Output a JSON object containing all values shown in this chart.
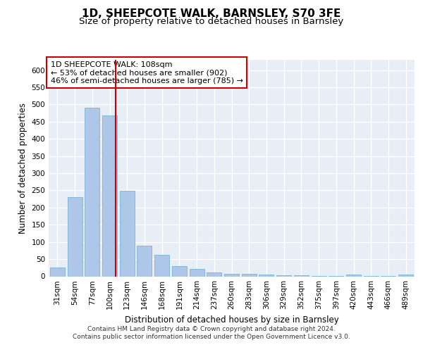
{
  "title": "1D, SHEEPCOTE WALK, BARNSLEY, S70 3FE",
  "subtitle": "Size of property relative to detached houses in Barnsley",
  "xlabel": "Distribution of detached houses by size in Barnsley",
  "ylabel": "Number of detached properties",
  "categories": [
    "31sqm",
    "54sqm",
    "77sqm",
    "100sqm",
    "123sqm",
    "146sqm",
    "168sqm",
    "191sqm",
    "214sqm",
    "237sqm",
    "260sqm",
    "283sqm",
    "306sqm",
    "329sqm",
    "352sqm",
    "375sqm",
    "397sqm",
    "420sqm",
    "443sqm",
    "466sqm",
    "489sqm"
  ],
  "values": [
    25,
    231,
    491,
    469,
    248,
    90,
    62,
    30,
    22,
    12,
    8,
    7,
    5,
    4,
    3,
    2,
    2,
    6,
    2,
    2,
    5
  ],
  "bar_color": "#aec6e8",
  "bar_edge_color": "#6aaad4",
  "vline_x": 3.35,
  "vline_color": "#cc0000",
  "annotation_text": "1D SHEEPCOTE WALK: 108sqm\n← 53% of detached houses are smaller (902)\n46% of semi-detached houses are larger (785) →",
  "annotation_box_color": "#ffffff",
  "annotation_box_edge": "#cc0000",
  "ylim": [
    0,
    630
  ],
  "yticks": [
    0,
    50,
    100,
    150,
    200,
    250,
    300,
    350,
    400,
    450,
    500,
    550,
    600
  ],
  "background_color": "#e8eef5",
  "grid_color": "#ffffff",
  "footer_line1": "Contains HM Land Registry data © Crown copyright and database right 2024.",
  "footer_line2": "Contains public sector information licensed under the Open Government Licence v3.0.",
  "title_fontsize": 11,
  "subtitle_fontsize": 9.5,
  "axis_label_fontsize": 8.5,
  "tick_fontsize": 7.5,
  "annotation_fontsize": 8,
  "footer_fontsize": 6.5
}
